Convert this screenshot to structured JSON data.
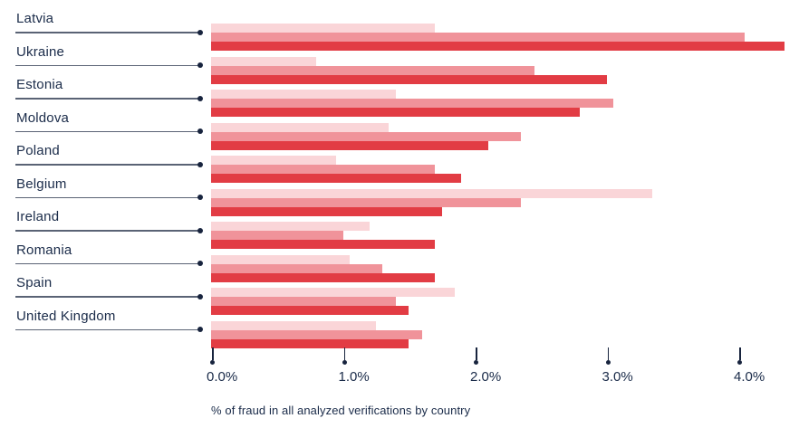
{
  "chart_data": {
    "type": "bar",
    "orientation": "horizontal",
    "title": "",
    "xlabel": "% of fraud in all analyzed verifications by country",
    "ylabel": "",
    "categories": [
      "Latvia",
      "Ukraine",
      "Estonia",
      "Moldova",
      "Poland",
      "Belgium",
      "Ireland",
      "Romania",
      "Spain",
      "United Kingdom"
    ],
    "series": [
      {
        "name": "series-1-light-pink",
        "color": "#fad5d8",
        "values": [
          1.7,
          0.8,
          1.4,
          1.35,
          0.95,
          3.35,
          1.2,
          1.05,
          1.85,
          1.25
        ]
      },
      {
        "name": "series-2-medium-pink",
        "color": "#f0939a",
        "values": [
          4.05,
          2.45,
          3.05,
          2.35,
          1.7,
          2.35,
          1.0,
          1.3,
          1.4,
          1.6
        ]
      },
      {
        "name": "series-3-red",
        "color": "#e23c44",
        "values": [
          4.35,
          3.0,
          2.8,
          2.1,
          1.9,
          1.75,
          1.7,
          1.7,
          1.5,
          1.5
        ]
      }
    ],
    "unit": "%",
    "x_ticks": [
      "0.0%",
      "1.0%",
      "2.0%",
      "3.0%",
      "4.0%"
    ],
    "x_tick_values": [
      0,
      1,
      2,
      3,
      4
    ],
    "xlim": [
      0,
      4.45
    ],
    "legend": "none",
    "grid": false
  },
  "colors": {
    "text": "#1a2b49",
    "leader_line": "#5a6375",
    "dot": "#18243e",
    "background": "#ffffff"
  }
}
